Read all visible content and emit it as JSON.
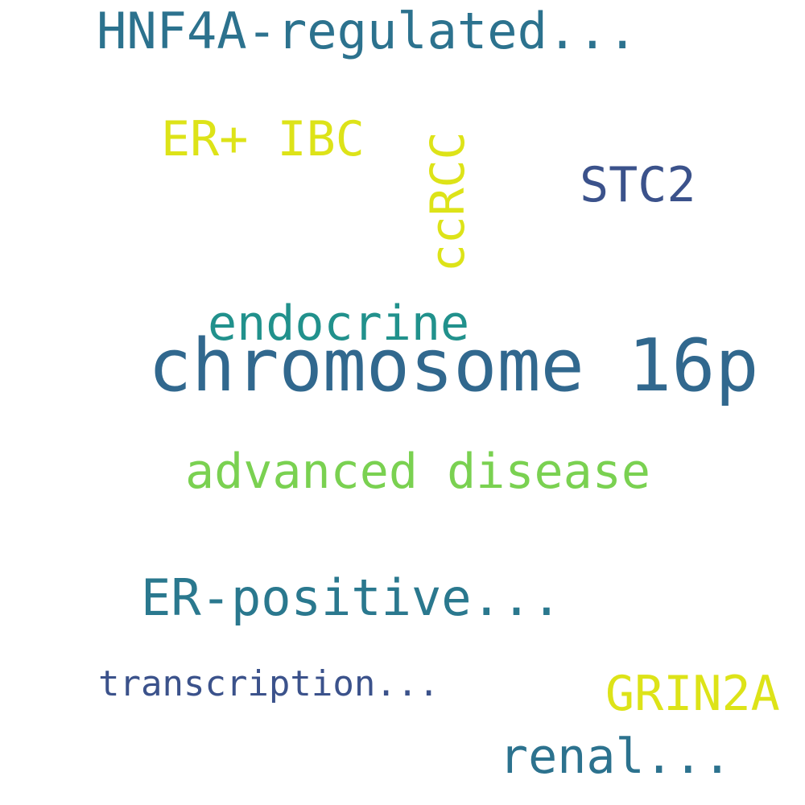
{
  "words": [
    {
      "text": "HNF4A-regulated...",
      "color": "#2c728e"
    },
    {
      "text": "ER+ IBC",
      "color": "#dde318"
    },
    {
      "text": "ccRCC",
      "color": "#dde318"
    },
    {
      "text": "STC2",
      "color": "#3b528b"
    },
    {
      "text": "endocrine",
      "color": "#21918c"
    },
    {
      "text": "chromosome 16p",
      "color": "#31688e"
    },
    {
      "text": "advanced disease",
      "color": "#7ad151"
    },
    {
      "text": "ER-positive...",
      "color": "#2a788e"
    },
    {
      "text": "transcription...",
      "color": "#3b528b"
    },
    {
      "text": "GRIN2A",
      "color": "#dde318"
    },
    {
      "text": "renal...",
      "color": "#2c728e"
    }
  ]
}
